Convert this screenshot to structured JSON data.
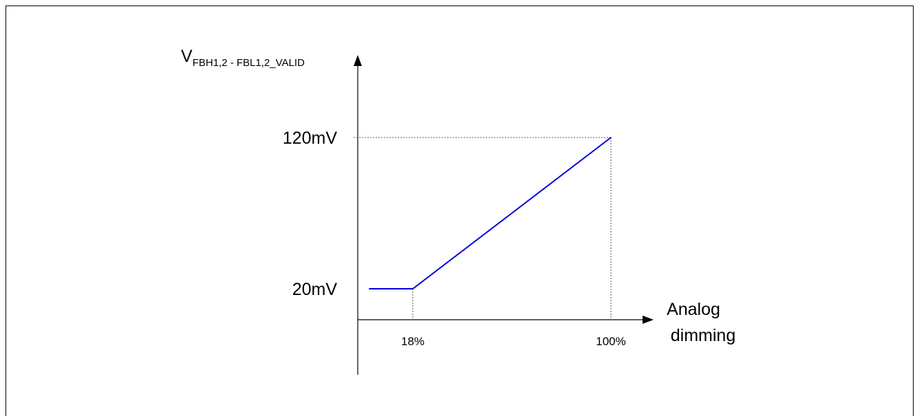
{
  "chart_data": {
    "type": "line",
    "title": "",
    "ylabel_main": "V",
    "ylabel_sub": "FBH1,2 - FBL1,2_VALID",
    "xlabel_line1": "Analog",
    "xlabel_line2": "dimming",
    "x_unit": "%",
    "y_unit": "mV",
    "x_ticks": [
      {
        "value": 18,
        "label": "18%"
      },
      {
        "value": 100,
        "label": "100%"
      }
    ],
    "y_ticks": [
      {
        "value": 20,
        "label": "20mV"
      },
      {
        "value": 120,
        "label": "120mV"
      }
    ],
    "series": [
      {
        "color": "#0000dd",
        "points": [
          {
            "x": 0,
            "y": 20
          },
          {
            "x": 18,
            "y": 20
          },
          {
            "x": 100,
            "y": 120
          }
        ]
      }
    ],
    "guide_color": "#555555",
    "axis_color": "#000000"
  }
}
